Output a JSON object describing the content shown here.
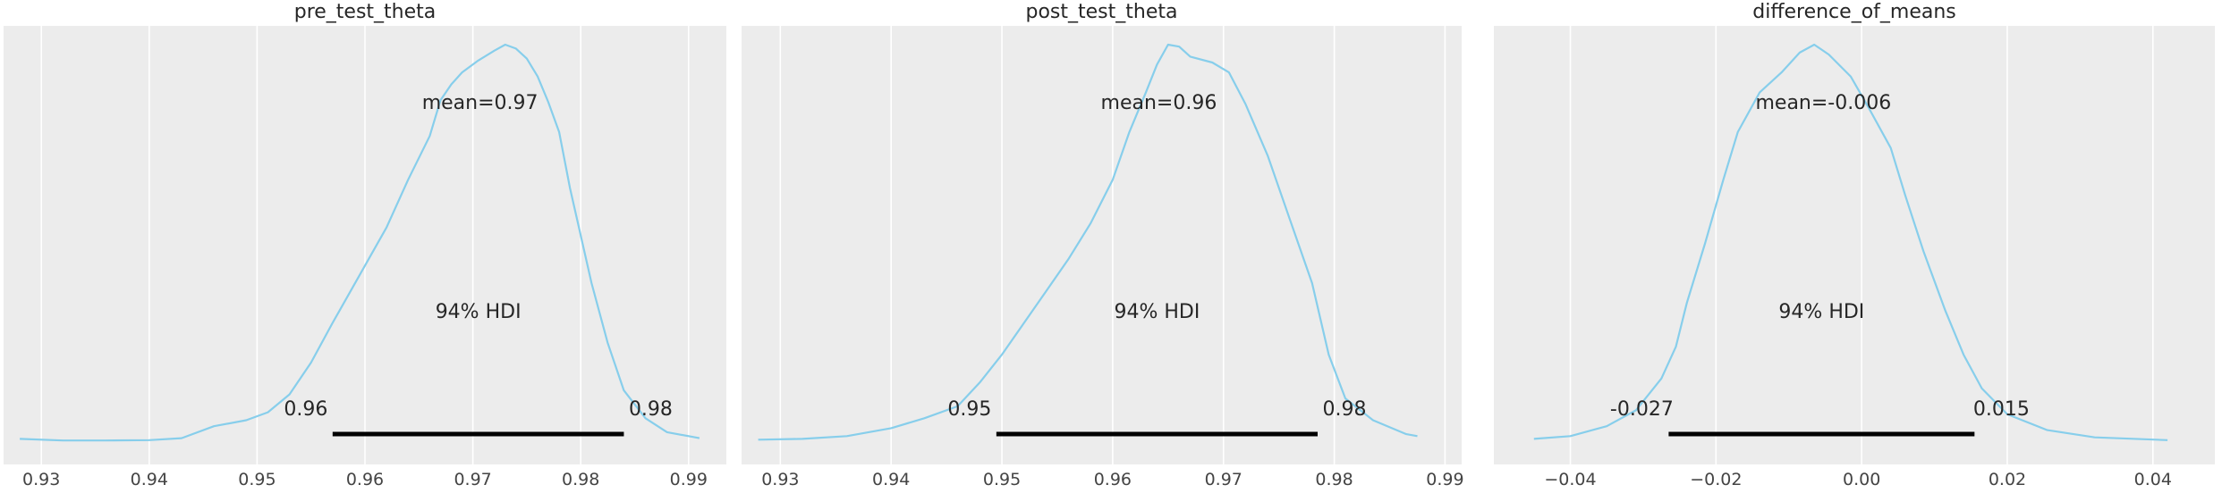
{
  "chart_data": [
    {
      "type": "area",
      "title": "pre_test_theta",
      "xlim": [
        0.9265,
        0.9935
      ],
      "ticks": [
        0.93,
        0.94,
        0.95,
        0.96,
        0.97,
        0.98,
        0.99
      ],
      "tick_labels": [
        "0.93",
        "0.94",
        "0.95",
        "0.96",
        "0.97",
        "0.98",
        "0.99"
      ],
      "mean_label": "mean=0.97",
      "hdi_label": "94% HDI",
      "hdi": [
        0.957,
        0.984
      ],
      "hdi_low_label": "0.96",
      "hdi_high_label": "0.98",
      "density": [
        [
          0.928,
          0.008
        ],
        [
          0.932,
          0.004
        ],
        [
          0.936,
          0.004
        ],
        [
          0.94,
          0.005
        ],
        [
          0.943,
          0.01
        ],
        [
          0.946,
          0.04
        ],
        [
          0.949,
          0.055
        ],
        [
          0.951,
          0.075
        ],
        [
          0.953,
          0.12
        ],
        [
          0.955,
          0.2
        ],
        [
          0.957,
          0.3
        ],
        [
          0.9595,
          0.42
        ],
        [
          0.962,
          0.54
        ],
        [
          0.964,
          0.66
        ],
        [
          0.966,
          0.77
        ],
        [
          0.967,
          0.86
        ],
        [
          0.968,
          0.9
        ],
        [
          0.969,
          0.93
        ],
        [
          0.9705,
          0.96
        ],
        [
          0.972,
          0.985
        ],
        [
          0.973,
          1.0
        ],
        [
          0.974,
          0.99
        ],
        [
          0.975,
          0.965
        ],
        [
          0.976,
          0.92
        ],
        [
          0.977,
          0.855
        ],
        [
          0.978,
          0.78
        ],
        [
          0.979,
          0.64
        ],
        [
          0.98,
          0.52
        ],
        [
          0.981,
          0.4
        ],
        [
          0.9825,
          0.25
        ],
        [
          0.984,
          0.13
        ],
        [
          0.986,
          0.06
        ],
        [
          0.988,
          0.025
        ],
        [
          0.991,
          0.01
        ]
      ]
    },
    {
      "type": "area",
      "title": "post_test_theta",
      "xlim": [
        0.9265,
        0.9915
      ],
      "ticks": [
        0.93,
        0.94,
        0.95,
        0.96,
        0.97,
        0.98,
        0.99
      ],
      "tick_labels": [
        "0.93",
        "0.94",
        "0.95",
        "0.96",
        "0.97",
        "0.98",
        "0.99"
      ],
      "mean_label": "mean=0.96",
      "hdi_label": "94% HDI",
      "hdi": [
        0.9495,
        0.9785
      ],
      "hdi_low_label": "0.95",
      "hdi_high_label": "0.98",
      "density": [
        [
          0.928,
          0.006
        ],
        [
          0.932,
          0.008
        ],
        [
          0.936,
          0.015
        ],
        [
          0.94,
          0.035
        ],
        [
          0.943,
          0.06
        ],
        [
          0.946,
          0.09
        ],
        [
          0.948,
          0.15
        ],
        [
          0.95,
          0.22
        ],
        [
          0.952,
          0.3
        ],
        [
          0.954,
          0.38
        ],
        [
          0.956,
          0.46
        ],
        [
          0.958,
          0.55
        ],
        [
          0.96,
          0.66
        ],
        [
          0.9615,
          0.78
        ],
        [
          0.963,
          0.88
        ],
        [
          0.964,
          0.95
        ],
        [
          0.965,
          1.0
        ],
        [
          0.966,
          0.995
        ],
        [
          0.967,
          0.97
        ],
        [
          0.969,
          0.955
        ],
        [
          0.9705,
          0.93
        ],
        [
          0.972,
          0.85
        ],
        [
          0.974,
          0.72
        ],
        [
          0.976,
          0.56
        ],
        [
          0.978,
          0.4
        ],
        [
          0.9795,
          0.22
        ],
        [
          0.981,
          0.11
        ],
        [
          0.9835,
          0.055
        ],
        [
          0.9865,
          0.02
        ],
        [
          0.9875,
          0.015
        ]
      ]
    },
    {
      "type": "area",
      "title": "difference_of_means",
      "xlim": [
        -0.0505,
        0.0485
      ],
      "ticks": [
        -0.04,
        -0.02,
        0.0,
        0.02,
        0.04
      ],
      "tick_labels": [
        "−0.04",
        "−0.02",
        "0.00",
        "0.02",
        "0.04"
      ],
      "mean_label": "mean=-0.006",
      "hdi_label": "94% HDI",
      "hdi": [
        -0.0265,
        0.0155
      ],
      "hdi_low_label": "-0.027",
      "hdi_high_label": "0.015",
      "density": [
        [
          -0.045,
          0.008
        ],
        [
          -0.04,
          0.015
        ],
        [
          -0.035,
          0.04
        ],
        [
          -0.031,
          0.08
        ],
        [
          -0.0275,
          0.16
        ],
        [
          -0.0255,
          0.24
        ],
        [
          -0.024,
          0.35
        ],
        [
          -0.0215,
          0.5
        ],
        [
          -0.019,
          0.66
        ],
        [
          -0.017,
          0.78
        ],
        [
          -0.014,
          0.88
        ],
        [
          -0.011,
          0.93
        ],
        [
          -0.0085,
          0.98
        ],
        [
          -0.0065,
          1.0
        ],
        [
          -0.0045,
          0.975
        ],
        [
          -0.0015,
          0.92
        ],
        [
          0.001,
          0.84
        ],
        [
          0.004,
          0.74
        ],
        [
          0.006,
          0.62
        ],
        [
          0.0085,
          0.48
        ],
        [
          0.0115,
          0.33
        ],
        [
          0.014,
          0.22
        ],
        [
          0.0165,
          0.135
        ],
        [
          0.02,
          0.07
        ],
        [
          0.0255,
          0.03
        ],
        [
          0.032,
          0.012
        ],
        [
          0.042,
          0.005
        ]
      ]
    }
  ],
  "colors": {
    "line": "#87ceeb",
    "panel_bg": "#ececec",
    "grid": "#ffffff",
    "hdi_bar": "#000000",
    "text": "#262626"
  }
}
